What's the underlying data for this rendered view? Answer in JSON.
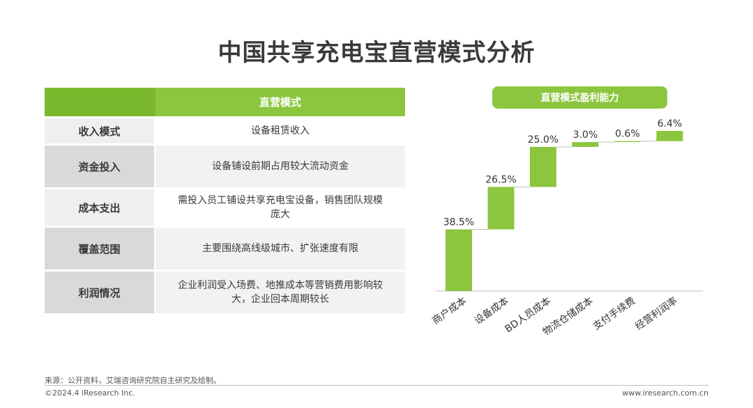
{
  "title": "中国共享充电宝直营模式分析",
  "table": {
    "header": "直营模式",
    "rows": [
      {
        "label": "收入模式",
        "value": "设备租赁收入"
      },
      {
        "label": "资金投入",
        "value": "设备铺设前期占用较大流动资金"
      },
      {
        "label": "成本支出",
        "value": "需投入员工铺设共享充电宝设备，销售团队规模庞大"
      },
      {
        "label": "覆盖范围",
        "value": "主要围绕高线级城市、扩张速度有限"
      },
      {
        "label": "利润情况",
        "value": "企业利润受入场费、地推成本等营销费用影响较大，企业回本周期较长"
      }
    ]
  },
  "chart_title": "直营模式盈利能力",
  "chart_data": {
    "type": "bar",
    "subtype": "waterfall",
    "categories": [
      "商户成本",
      "设备成本",
      "BD人员成本",
      "物流仓储成本",
      "支付手续费",
      "经营利润率"
    ],
    "values": [
      38.5,
      26.5,
      25.0,
      3.0,
      0.6,
      6.4
    ],
    "value_labels": [
      "38.5%",
      "26.5%",
      "25.0%",
      "3.0%",
      "0.6%",
      "6.4%"
    ],
    "unit": "%",
    "ylim": [
      0,
      100
    ],
    "grid": false,
    "bar_color": "#8cc63f"
  },
  "footer": {
    "source": "来源：公开资料，艾瑞咨询研究院自主研究及绘制。",
    "copyright": "©2024.4 iResearch Inc.",
    "website": "www.iresearch.com.cn"
  }
}
